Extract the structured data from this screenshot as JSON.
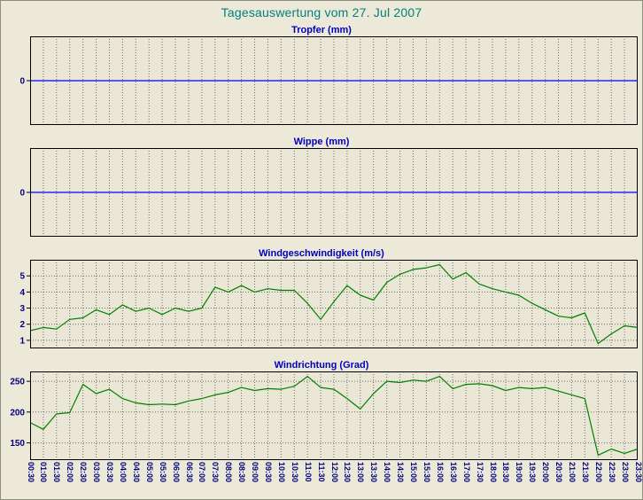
{
  "title": "Tagesauswertung vom 27. Jul 2007",
  "colors": {
    "page_bg": "#ece9d8",
    "plot_bg": "#eae7d6",
    "grid": "#595959",
    "border": "#000000",
    "main_title": "#008080",
    "chart_title": "#0000c0",
    "axis_label": "#000080",
    "rain_line": "#0000ff",
    "wind_line": "#008000"
  },
  "chart_data": {
    "type": "line",
    "legend_position": "none",
    "grid": "dashed",
    "categories": [
      "00:30",
      "01:00",
      "01:30",
      "02:00",
      "02:30",
      "03:00",
      "03:30",
      "04:00",
      "04:30",
      "05:00",
      "05:30",
      "06:00",
      "06:30",
      "07:00",
      "07:30",
      "08:00",
      "08:30",
      "09:00",
      "09:30",
      "10:00",
      "10:30",
      "11:00",
      "11:30",
      "12:00",
      "12:30",
      "13:00",
      "13:30",
      "14:00",
      "14:30",
      "15:00",
      "15:30",
      "16:00",
      "16:30",
      "17:00",
      "17:30",
      "18:00",
      "18:30",
      "19:00",
      "19:30",
      "20:00",
      "20:30",
      "21:00",
      "21:30",
      "22:00",
      "22:30",
      "23:00",
      "23:30"
    ],
    "charts": [
      {
        "title": "Tropfer (mm)",
        "color": "#0000ff",
        "yticks": [
          0
        ],
        "ylim": [
          -1,
          1
        ],
        "values": [
          0,
          0,
          0,
          0,
          0,
          0,
          0,
          0,
          0,
          0,
          0,
          0,
          0,
          0,
          0,
          0,
          0,
          0,
          0,
          0,
          0,
          0,
          0,
          0,
          0,
          0,
          0,
          0,
          0,
          0,
          0,
          0,
          0,
          0,
          0,
          0,
          0,
          0,
          0,
          0,
          0,
          0,
          0,
          0,
          0,
          0,
          0
        ]
      },
      {
        "title": "Wippe (mm)",
        "color": "#0000ff",
        "yticks": [
          0
        ],
        "ylim": [
          -1,
          1
        ],
        "values": [
          0,
          0,
          0,
          0,
          0,
          0,
          0,
          0,
          0,
          0,
          0,
          0,
          0,
          0,
          0,
          0,
          0,
          0,
          0,
          0,
          0,
          0,
          0,
          0,
          0,
          0,
          0,
          0,
          0,
          0,
          0,
          0,
          0,
          0,
          0,
          0,
          0,
          0,
          0,
          0,
          0,
          0,
          0,
          0,
          0,
          0,
          0
        ]
      },
      {
        "title": "Windgeschwindigkeit (m/s)",
        "color": "#008000",
        "yticks": [
          1,
          2,
          3,
          4,
          5
        ],
        "ylim": [
          0.5,
          6
        ],
        "values": [
          1.6,
          1.8,
          1.7,
          2.3,
          2.4,
          2.9,
          2.6,
          3.2,
          2.8,
          3.0,
          2.6,
          3.0,
          2.8,
          3.0,
          4.3,
          4.0,
          4.4,
          4.0,
          4.2,
          4.1,
          4.1,
          3.3,
          2.3,
          3.4,
          4.4,
          3.8,
          3.5,
          4.6,
          5.1,
          5.4,
          5.5,
          5.7,
          4.8,
          5.2,
          4.5,
          4.2,
          4.0,
          3.8,
          3.3,
          2.9,
          2.5,
          2.4,
          2.7,
          0.8,
          1.4,
          1.9,
          1.8
        ]
      },
      {
        "title": "Windrichtung (Grad)",
        "color": "#008000",
        "yticks": [
          150,
          200,
          250
        ],
        "ylim": [
          122,
          266
        ],
        "values": [
          183,
          172,
          197,
          199,
          245,
          230,
          237,
          222,
          215,
          212,
          213,
          212,
          218,
          222,
          228,
          232,
          240,
          235,
          238,
          237,
          242,
          258,
          240,
          237,
          222,
          205,
          230,
          250,
          248,
          252,
          250,
          258,
          238,
          245,
          246,
          243,
          235,
          240,
          238,
          240,
          234,
          228,
          222,
          130,
          140,
          133,
          140
        ]
      }
    ]
  }
}
